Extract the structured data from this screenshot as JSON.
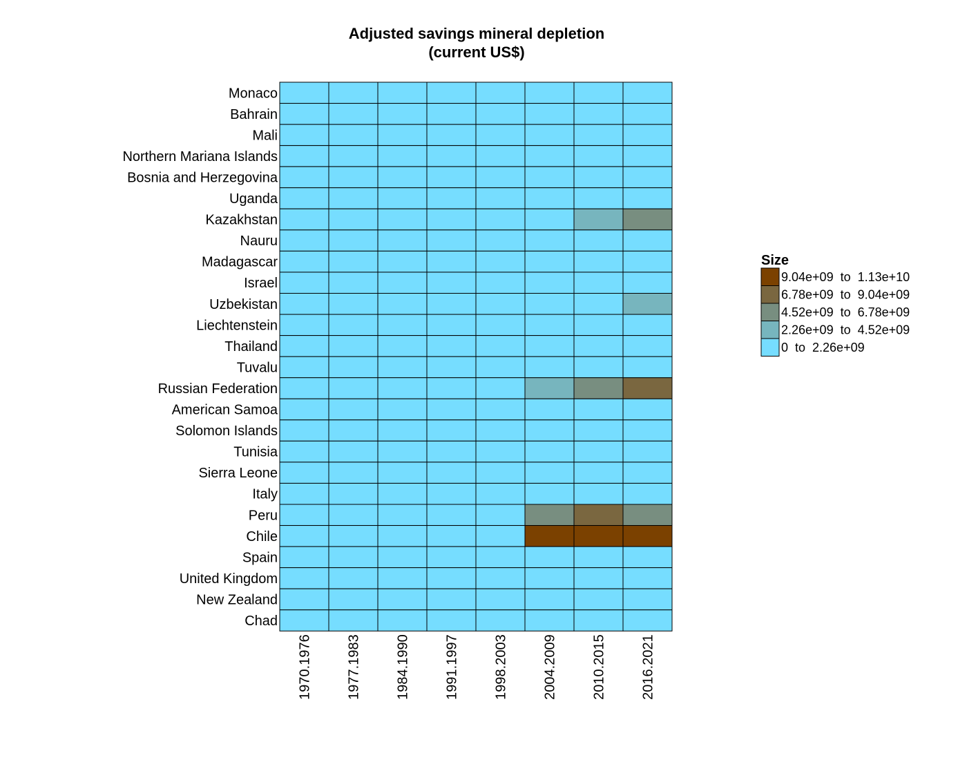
{
  "chart_data": {
    "type": "heatmap",
    "title": "Adjusted savings mineral depletion",
    "subtitle": "(current US$)",
    "columns": [
      "1970.1976",
      "1977.1983",
      "1984.1990",
      "1991.1997",
      "1998.2003",
      "2004.2009",
      "2010.2015",
      "2016.2021"
    ],
    "rows": [
      "Monaco",
      "Bahrain",
      "Mali",
      "Northern Mariana Islands",
      "Bosnia and Herzegovina",
      "Uganda",
      "Kazakhstan",
      "Nauru",
      "Madagascar",
      "Israel",
      "Uzbekistan",
      "Liechtenstein",
      "Thailand",
      "Tuvalu",
      "Russian Federation",
      "American Samoa",
      "Solomon Islands",
      "Tunisia",
      "Sierra Leone",
      "Italy",
      "Peru",
      "Chile",
      "Spain",
      "United Kingdom",
      "New Zealand",
      "Chad"
    ],
    "value_bins_note": "Each cell value is the index into legend.bins (0 = lowest bin)",
    "cells": [
      [
        0,
        0,
        0,
        0,
        0,
        0,
        0,
        0
      ],
      [
        0,
        0,
        0,
        0,
        0,
        0,
        0,
        0
      ],
      [
        0,
        0,
        0,
        0,
        0,
        0,
        0,
        0
      ],
      [
        0,
        0,
        0,
        0,
        0,
        0,
        0,
        0
      ],
      [
        0,
        0,
        0,
        0,
        0,
        0,
        0,
        0
      ],
      [
        0,
        0,
        0,
        0,
        0,
        0,
        0,
        0
      ],
      [
        0,
        0,
        0,
        0,
        0,
        0,
        1,
        2
      ],
      [
        0,
        0,
        0,
        0,
        0,
        0,
        0,
        0
      ],
      [
        0,
        0,
        0,
        0,
        0,
        0,
        0,
        0
      ],
      [
        0,
        0,
        0,
        0,
        0,
        0,
        0,
        0
      ],
      [
        0,
        0,
        0,
        0,
        0,
        0,
        0,
        1
      ],
      [
        0,
        0,
        0,
        0,
        0,
        0,
        0,
        0
      ],
      [
        0,
        0,
        0,
        0,
        0,
        0,
        0,
        0
      ],
      [
        0,
        0,
        0,
        0,
        0,
        0,
        0,
        0
      ],
      [
        0,
        0,
        0,
        0,
        0,
        1,
        2,
        3
      ],
      [
        0,
        0,
        0,
        0,
        0,
        0,
        0,
        0
      ],
      [
        0,
        0,
        0,
        0,
        0,
        0,
        0,
        0
      ],
      [
        0,
        0,
        0,
        0,
        0,
        0,
        0,
        0
      ],
      [
        0,
        0,
        0,
        0,
        0,
        0,
        0,
        0
      ],
      [
        0,
        0,
        0,
        0,
        0,
        0,
        0,
        0
      ],
      [
        0,
        0,
        0,
        0,
        0,
        2,
        3,
        2
      ],
      [
        0,
        0,
        0,
        0,
        0,
        4,
        4,
        4
      ],
      [
        0,
        0,
        0,
        0,
        0,
        0,
        0,
        0
      ],
      [
        0,
        0,
        0,
        0,
        0,
        0,
        0,
        0
      ],
      [
        0,
        0,
        0,
        0,
        0,
        0,
        0,
        0
      ],
      [
        0,
        0,
        0,
        0,
        0,
        0,
        0,
        0
      ]
    ],
    "legend": {
      "title": "Size",
      "placement": "right",
      "bins": [
        {
          "label": "0  to  2.26e+09",
          "min": 0,
          "max": 2260000000,
          "color": "#76DDFF"
        },
        {
          "label": "2.26e+09  to  4.52e+09",
          "min": 2260000000,
          "max": 4520000000,
          "color": "#77B5BE"
        },
        {
          "label": "4.52e+09  to  6.78e+09",
          "min": 4520000000,
          "max": 6780000000,
          "color": "#788E80"
        },
        {
          "label": "6.78e+09  to  9.04e+09",
          "min": 6780000000,
          "max": 9040000000,
          "color": "#7A6740"
        },
        {
          "label": "9.04e+09  to  1.13e+10",
          "min": 9040000000,
          "max": 11300000000,
          "color": "#7B4100"
        }
      ]
    },
    "grid": true,
    "cell_border_color": "#000000"
  }
}
